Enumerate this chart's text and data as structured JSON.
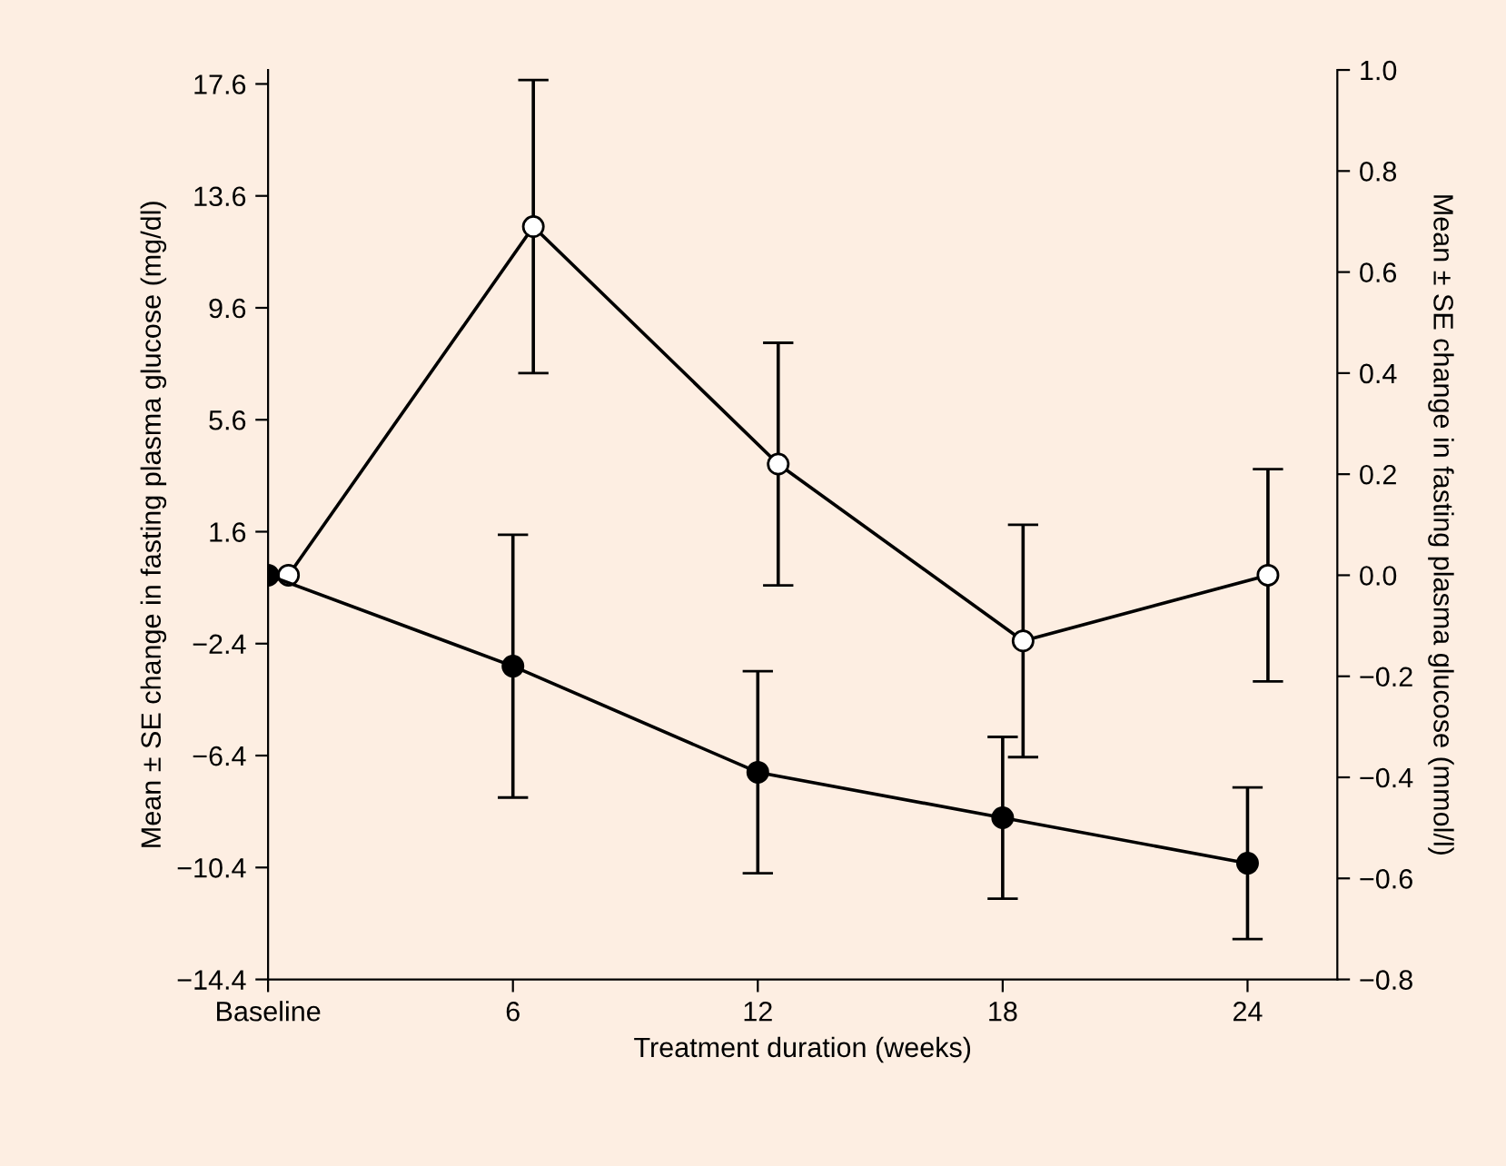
{
  "chart_data": {
    "type": "line",
    "xlabel": "Treatment duration (weeks)",
    "ylabel": "Mean ± SE change in fasting plasma glucose (mg/dl)",
    "y2label": "Mean ± SE change in fasting plasma glucose (mmol/l)",
    "xlim": [
      0,
      26.2
    ],
    "xticks": [
      {
        "value": 0,
        "label": "Baseline"
      },
      6,
      12,
      18,
      24
    ],
    "ylim": [
      -14.4,
      18.1
    ],
    "yticks": [
      -14.4,
      -10.4,
      -6.4,
      -2.4,
      1.6,
      5.6,
      9.6,
      13.6,
      17.6
    ],
    "y2lim": [
      -0.8,
      1.0
    ],
    "y2ticks": [
      -0.8,
      -0.6,
      -0.4,
      -0.2,
      {
        "value": 0,
        "label": "0.0"
      },
      0.2,
      0.4,
      0.6,
      0.8,
      {
        "value": 1,
        "label": "1.0"
      }
    ],
    "marker": "circle",
    "line_style": "solid",
    "grid": false,
    "series": [
      {
        "axis": "y2",
        "color": "#ffffff",
        "x": [
          0.5,
          6.5,
          12.5,
          18.5,
          24.5
        ],
        "values": [
          0.0,
          0.69,
          0.22,
          -0.13,
          0.0
        ],
        "errors": [
          null,
          0.29,
          0.24,
          0.23,
          0.21
        ]
      },
      {
        "axis": "y2",
        "color": "#000000",
        "x": [
          0,
          6,
          12,
          18,
          24
        ],
        "values": [
          0.0,
          -0.18,
          -0.39,
          -0.48,
          -0.57
        ],
        "errors": [
          null,
          0.26,
          0.2,
          0.16,
          0.15
        ]
      }
    ]
  }
}
